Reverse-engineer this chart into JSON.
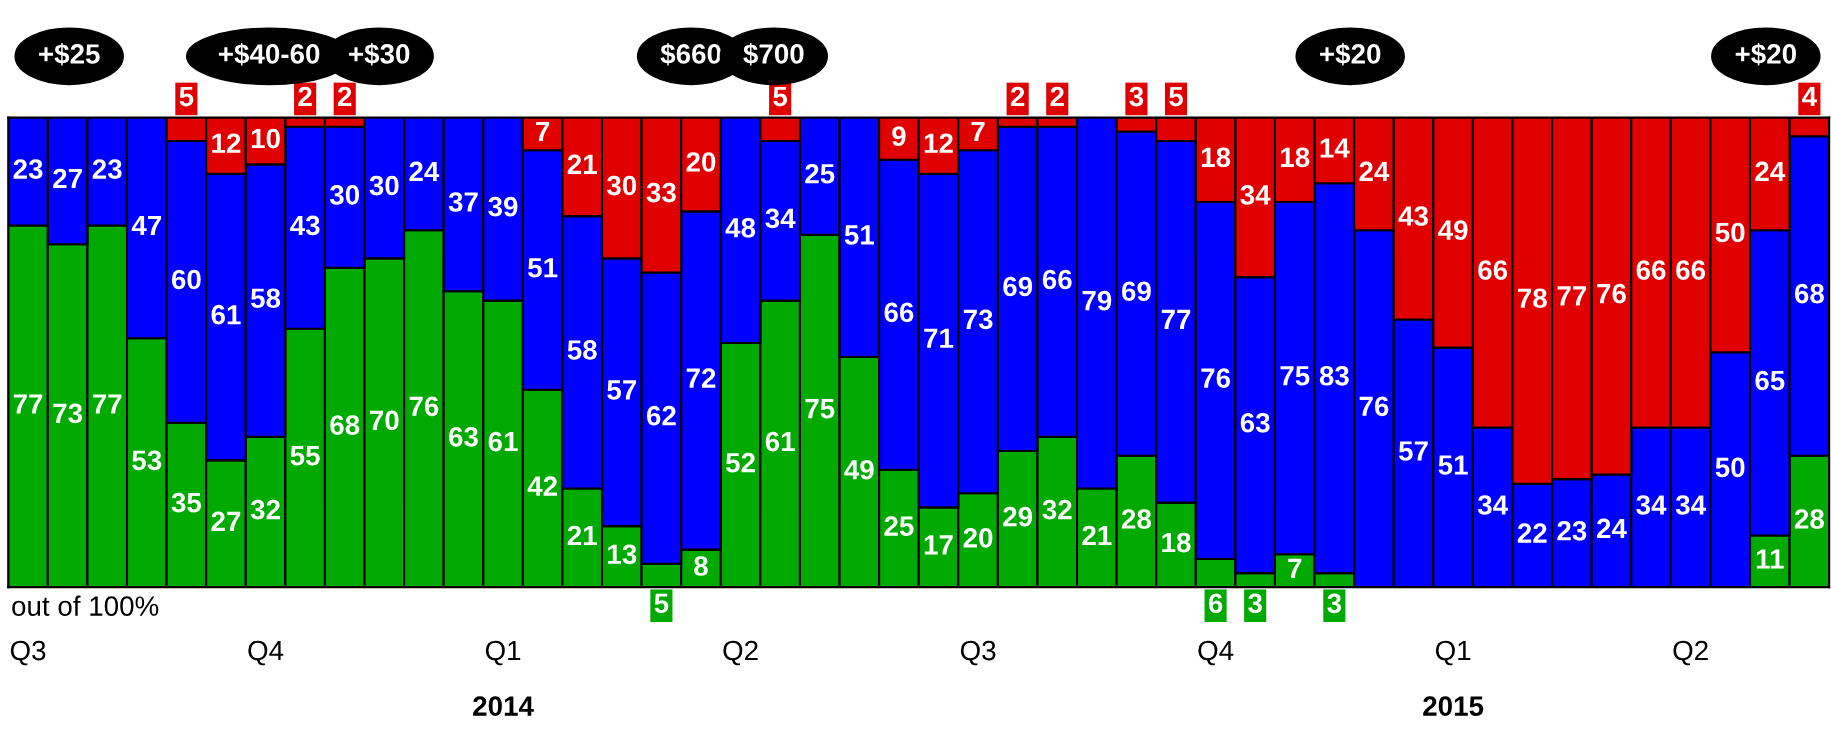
{
  "chart_data": {
    "type": "bar",
    "stacked": true,
    "data_labels": true,
    "tick_labels": "x",
    "ylim": [
      0,
      100
    ],
    "categories": [
      "Q3",
      null,
      null,
      null,
      null,
      null,
      "Q4",
      null,
      null,
      null,
      null,
      null,
      "Q1\n2014",
      null,
      null,
      null,
      null,
      null,
      "Q2",
      null,
      null,
      null,
      null,
      null,
      "Q3",
      null,
      null,
      null,
      null,
      null,
      "Q4",
      null,
      null,
      null,
      null,
      null,
      "Q1\n2015",
      null,
      null,
      null,
      null,
      null,
      "Q2",
      null,
      null,
      null
    ],
    "series": [
      {
        "color": "#00aa00",
        "values": [
          77,
          73,
          77,
          53,
          35,
          27,
          32,
          55,
          68,
          70,
          76,
          63,
          61,
          42,
          21,
          13,
          5,
          8,
          52,
          61,
          75,
          49,
          25,
          17,
          20,
          29,
          32,
          21,
          28,
          18,
          6,
          3,
          7,
          3,
          null,
          null,
          null,
          null,
          null,
          null,
          null,
          null,
          null,
          null,
          11,
          28
        ]
      },
      {
        "color": "#0000ff",
        "values": [
          23,
          27,
          23,
          47,
          60,
          61,
          58,
          43,
          30,
          30,
          24,
          37,
          39,
          51,
          58,
          57,
          62,
          72,
          48,
          34,
          25,
          51,
          66,
          71,
          73,
          69,
          66,
          79,
          69,
          77,
          76,
          63,
          75,
          83,
          76,
          57,
          51,
          34,
          22,
          23,
          24,
          34,
          34,
          50,
          65,
          68
        ]
      },
      {
        "color": "#e00000",
        "values": [
          null,
          null,
          null,
          null,
          5,
          12,
          10,
          2,
          2,
          null,
          null,
          null,
          null,
          7,
          21,
          30,
          33,
          20,
          null,
          5,
          null,
          null,
          9,
          12,
          7,
          2,
          2,
          null,
          3,
          5,
          18,
          34,
          18,
          14,
          24,
          43,
          49,
          66,
          78,
          77,
          76,
          66,
          66,
          50,
          24,
          4
        ]
      }
    ],
    "annotations": [
      "+$25",
      "+$40-60",
      "+$30",
      "$660",
      "$700",
      "+$20",
      "+$20",
      "out of 100%"
    ]
  }
}
